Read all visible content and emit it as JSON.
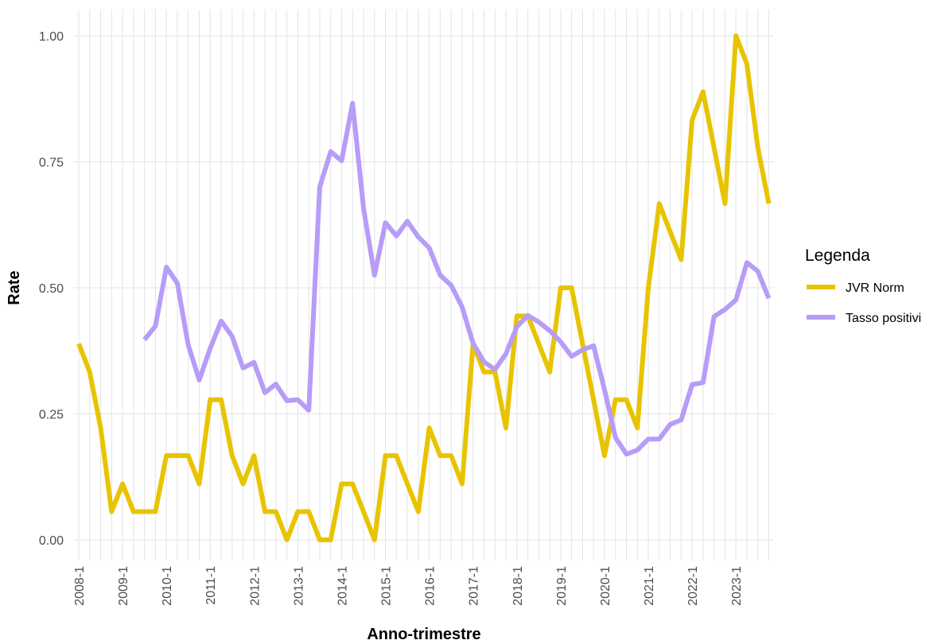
{
  "chart_data": {
    "type": "line",
    "x_label": "Anno-trimestre",
    "y_label": "Rate",
    "legend_title": "Legenda",
    "legend_position": "right",
    "grid": true,
    "categories": [
      "2008-1",
      null,
      null,
      null,
      "2009-1",
      null,
      null,
      null,
      "2010-1",
      null,
      null,
      null,
      "2011-1",
      null,
      null,
      null,
      "2012-1",
      null,
      null,
      null,
      "2013-1",
      null,
      null,
      null,
      "2014-1",
      null,
      null,
      null,
      "2015-1",
      null,
      null,
      null,
      "2016-1",
      null,
      null,
      null,
      "2017-1",
      null,
      null,
      null,
      "2018-1",
      null,
      null,
      null,
      "2019-1",
      null,
      null,
      null,
      "2020-1",
      null,
      null,
      null,
      "2021-1",
      null,
      null,
      null,
      "2022-1",
      null,
      null,
      null,
      "2023-1",
      null,
      null,
      null
    ],
    "ylim": [
      -0.041,
      1.052
    ],
    "yticks": [
      {
        "value": 0,
        "label": "0.00"
      },
      {
        "value": 0.25,
        "label": "0.25"
      },
      {
        "value": 0.5,
        "label": "0.50"
      },
      {
        "value": 0.75,
        "label": "0.75"
      },
      {
        "value": 1,
        "label": "1.00"
      }
    ],
    "series": [
      {
        "name": "JVR Norm",
        "color": "#e8c400",
        "values": [
          0.389,
          0.333,
          0.222,
          0.056,
          0.111,
          0.056,
          0.056,
          0.056,
          0.167,
          0.167,
          0.167,
          0.111,
          0.278,
          0.278,
          0.167,
          0.111,
          0.167,
          0.056,
          0.056,
          0,
          0.056,
          0.056,
          0,
          0,
          0.111,
          0.111,
          0.056,
          0,
          0.167,
          0.167,
          0.111,
          0.056,
          0.222,
          0.167,
          0.167,
          0.111,
          0.389,
          0.333,
          0.333,
          0.222,
          0.444,
          0.444,
          0.389,
          0.333,
          0.5,
          0.5,
          0.389,
          0.278,
          0.167,
          0.278,
          0.278,
          0.222,
          0.5,
          0.667,
          0.611,
          0.556,
          0.833,
          0.889,
          0.778,
          0.667,
          1,
          0.944,
          0.778,
          0.667
        ]
      },
      {
        "name": "Tasso positivi",
        "color": "#b79cf8",
        "values": [
          null,
          null,
          null,
          null,
          null,
          null,
          0.397,
          0.424,
          0.541,
          0.509,
          0.386,
          0.317,
          0.38,
          0.434,
          0.404,
          0.341,
          0.352,
          0.292,
          0.309,
          0.276,
          0.278,
          0.257,
          0.7,
          0.77,
          0.752,
          0.866,
          0.658,
          0.525,
          0.629,
          0.603,
          0.632,
          0.601,
          0.579,
          0.525,
          0.505,
          0.462,
          0.39,
          0.353,
          0.338,
          0.369,
          0.423,
          0.445,
          0.432,
          0.415,
          0.393,
          0.364,
          0.377,
          0.385,
          0.298,
          0.203,
          0.17,
          0.178,
          0.2,
          0.2,
          0.229,
          0.238,
          0.308,
          0.312,
          0.443,
          0.457,
          0.476,
          0.55,
          0.533,
          0.479
        ]
      }
    ]
  }
}
